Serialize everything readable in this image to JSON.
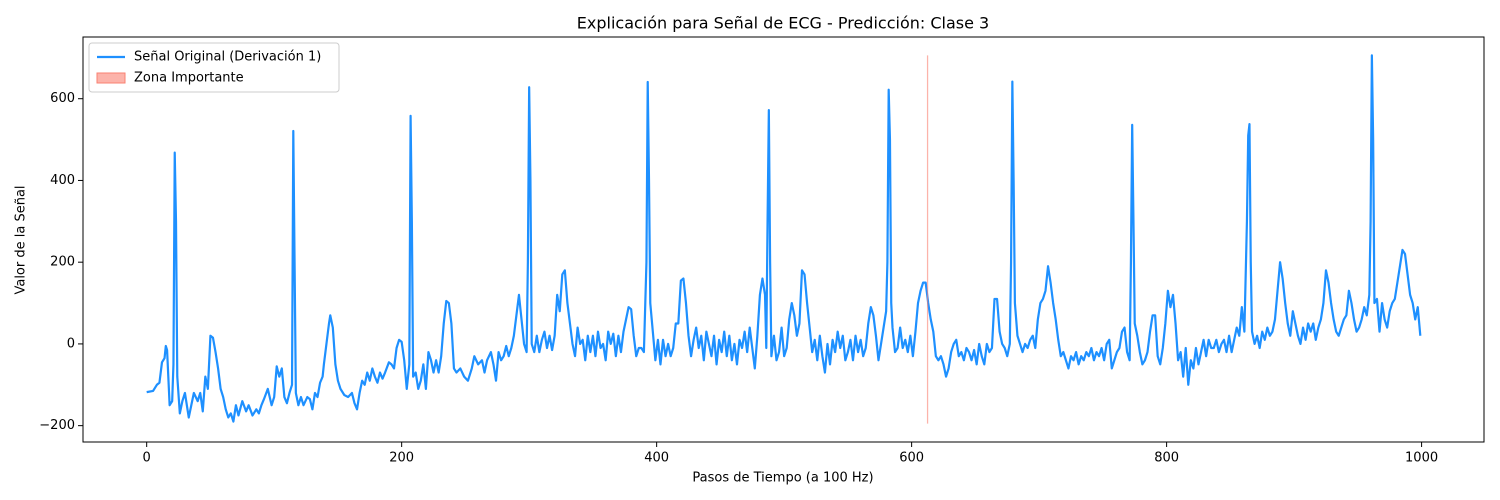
{
  "chart_data": {
    "type": "line",
    "title": "Explicación para Señal de ECG - Predicción: Clase 3",
    "xlabel": "Pasos de Tiempo (a 100 Hz)",
    "ylabel": "Valor de la Señal",
    "legend": "upper left",
    "xlim": [
      -49.95,
      1048.95
    ],
    "ylim": [
      -240,
      751
    ],
    "xticks": [
      0,
      200,
      400,
      600,
      800,
      1000
    ],
    "yticks": [
      {
        "value": -200,
        "label": "−200"
      },
      0,
      200,
      400,
      600
    ],
    "x": [
      0,
      5,
      8,
      10,
      12,
      14,
      15,
      16,
      18,
      20,
      21,
      22,
      23,
      24,
      26,
      28,
      30,
      33,
      35,
      37,
      40,
      42,
      44,
      46,
      48,
      50,
      52,
      54,
      56,
      58,
      60,
      62,
      64,
      66,
      68,
      70,
      72,
      75,
      78,
      80,
      83,
      86,
      88,
      90,
      92,
      95,
      98,
      100,
      102,
      104,
      106,
      108,
      110,
      112,
      114,
      115,
      116,
      117,
      119,
      121,
      123,
      126,
      128,
      130,
      132,
      134,
      136,
      138,
      139,
      141,
      143,
      144,
      146,
      148,
      150,
      152,
      155,
      158,
      161,
      163,
      165,
      167,
      169,
      171,
      173,
      175,
      177,
      179,
      181,
      183,
      185,
      187,
      190,
      192,
      194,
      196,
      198,
      200,
      202,
      204,
      206,
      207,
      208,
      209,
      211,
      213,
      215,
      217,
      219,
      221,
      223,
      225,
      227,
      229,
      231,
      233,
      235,
      237,
      239,
      241,
      243,
      246,
      249,
      252,
      255,
      257,
      260,
      263,
      265,
      267,
      270,
      272,
      274,
      276,
      278,
      280,
      282,
      284,
      286,
      288,
      290,
      292,
      294,
      296,
      298,
      299,
      300,
      301,
      302,
      304,
      306,
      308,
      310,
      312,
      314,
      316,
      318,
      320,
      322,
      324,
      326,
      328,
      330,
      332,
      334,
      336,
      338,
      340,
      342,
      344,
      346,
      348,
      350,
      352,
      354,
      356,
      358,
      360,
      362,
      364,
      366,
      368,
      370,
      372,
      374,
      376,
      378,
      380,
      382,
      384,
      386,
      388,
      390,
      392,
      393,
      394,
      395,
      397,
      399,
      401,
      403,
      405,
      407,
      409,
      411,
      413,
      415,
      417,
      419,
      421,
      423,
      425,
      427,
      429,
      431,
      433,
      435,
      437,
      439,
      441,
      443,
      445,
      447,
      449,
      451,
      453,
      455,
      457,
      459,
      461,
      463,
      465,
      467,
      469,
      471,
      473,
      475,
      477,
      479,
      481,
      483,
      485,
      486,
      487,
      488,
      489,
      490,
      492,
      494,
      496,
      498,
      500,
      502,
      504,
      506,
      508,
      510,
      512,
      514,
      516,
      518,
      520,
      522,
      524,
      526,
      528,
      530,
      532,
      534,
      536,
      538,
      540,
      542,
      544,
      546,
      548,
      550,
      552,
      554,
      556,
      558,
      560,
      562,
      564,
      566,
      568,
      570,
      572,
      574,
      576,
      578,
      580,
      581,
      582,
      583,
      584,
      585,
      587,
      589,
      591,
      593,
      595,
      597,
      599,
      601,
      603,
      605,
      607,
      609,
      611,
      613,
      615,
      617,
      619,
      621,
      623,
      625,
      627,
      629,
      631,
      633,
      635,
      637,
      639,
      641,
      643,
      645,
      647,
      649,
      651,
      653,
      655,
      657,
      659,
      661,
      663,
      665,
      667,
      669,
      671,
      673,
      675,
      677,
      678,
      679,
      680,
      681,
      683,
      685,
      687,
      689,
      691,
      693,
      695,
      697,
      699,
      701,
      703,
      705,
      707,
      709,
      711,
      713,
      715,
      717,
      719,
      721,
      723,
      725,
      727,
      729,
      731,
      733,
      735,
      737,
      739,
      741,
      743,
      745,
      747,
      749,
      751,
      753,
      755,
      757,
      759,
      761,
      763,
      765,
      767,
      769,
      771,
      772,
      773,
      774,
      775,
      777,
      779,
      781,
      783,
      785,
      787,
      789,
      791,
      793,
      795,
      797,
      799,
      801,
      803,
      805,
      807,
      809,
      811,
      813,
      815,
      817,
      819,
      821,
      823,
      825,
      827,
      829,
      831,
      833,
      835,
      837,
      839,
      841,
      843,
      845,
      847,
      849,
      851,
      853,
      855,
      857,
      859,
      861,
      863,
      864,
      865,
      866,
      867,
      869,
      871,
      873,
      875,
      877,
      879,
      881,
      883,
      885,
      887,
      889,
      891,
      893,
      895,
      897,
      899,
      901,
      903,
      905,
      907,
      909,
      911,
      913,
      915,
      917,
      919,
      921,
      923,
      925,
      927,
      929,
      931,
      933,
      935,
      937,
      939,
      941,
      943,
      945,
      947,
      949,
      951,
      953,
      955,
      957,
      959,
      960,
      961,
      962,
      963,
      965,
      967,
      969,
      971,
      973,
      975,
      977,
      979,
      981,
      983,
      985,
      987,
      989,
      991,
      993,
      995,
      997,
      999
    ],
    "series": [
      {
        "name": "Señal Original (Derivación 1)",
        "color": "#1e90ff",
        "values": [
          -118,
          -115,
          -100,
          -95,
          -45,
          -35,
          -5,
          -15,
          -150,
          -140,
          -50,
          468,
          300,
          -80,
          -170,
          -140,
          -120,
          -180,
          -150,
          -120,
          -140,
          -120,
          -165,
          -80,
          -110,
          20,
          15,
          -20,
          -60,
          -110,
          -130,
          -160,
          -180,
          -170,
          -190,
          -150,
          -175,
          -140,
          -165,
          -150,
          -175,
          -160,
          -170,
          -150,
          -135,
          -110,
          -150,
          -130,
          -55,
          -80,
          -60,
          -130,
          -145,
          -120,
          -100,
          521,
          200,
          -120,
          -150,
          -130,
          -150,
          -130,
          -135,
          -160,
          -120,
          -130,
          -95,
          -80,
          -50,
          0,
          50,
          70,
          40,
          -50,
          -90,
          -110,
          -125,
          -130,
          -120,
          -145,
          -160,
          -120,
          -90,
          -100,
          -70,
          -90,
          -60,
          -80,
          -95,
          -70,
          -85,
          -70,
          -45,
          -50,
          -60,
          -10,
          10,
          5,
          -40,
          -110,
          -50,
          558,
          300,
          -80,
          -70,
          -110,
          -90,
          -50,
          -110,
          -20,
          -40,
          -70,
          -40,
          -70,
          -30,
          50,
          105,
          100,
          50,
          -60,
          -70,
          -60,
          -80,
          -90,
          -60,
          -30,
          -50,
          -40,
          -70,
          -40,
          -20,
          -50,
          -90,
          -20,
          -40,
          -30,
          -5,
          -30,
          -10,
          20,
          70,
          120,
          60,
          0,
          -20,
          200,
          628,
          400,
          0,
          -20,
          20,
          -20,
          10,
          30,
          -10,
          20,
          -15,
          20,
          120,
          80,
          170,
          180,
          100,
          50,
          0,
          -30,
          40,
          0,
          10,
          -40,
          20,
          -20,
          20,
          -30,
          30,
          -10,
          0,
          -40,
          30,
          0,
          25,
          -30,
          20,
          -20,
          30,
          60,
          90,
          85,
          20,
          -30,
          -10,
          -10,
          -20,
          200,
          641,
          400,
          100,
          30,
          -40,
          10,
          -50,
          10,
          -30,
          0,
          -30,
          -10,
          50,
          50,
          155,
          160,
          100,
          20,
          -30,
          10,
          40,
          -10,
          20,
          -40,
          30,
          0,
          -30,
          20,
          -50,
          10,
          -20,
          30,
          -30,
          20,
          -40,
          0,
          -50,
          10,
          -10,
          30,
          -20,
          40,
          -10,
          -60,
          20,
          120,
          160,
          120,
          -10,
          300,
          572,
          200,
          -30,
          20,
          -40,
          -20,
          40,
          -30,
          -10,
          60,
          100,
          70,
          20,
          50,
          180,
          170,
          100,
          40,
          -20,
          10,
          -40,
          20,
          -30,
          -70,
          0,
          -50,
          10,
          -20,
          30,
          -10,
          20,
          -40,
          -20,
          10,
          -40,
          20,
          -20,
          10,
          -30,
          -10,
          50,
          90,
          70,
          20,
          -40,
          0,
          40,
          80,
          200,
          622,
          500,
          100,
          40,
          -20,
          -10,
          40,
          -10,
          10,
          -20,
          20,
          -30,
          30,
          100,
          130,
          150,
          150,
          100,
          60,
          30,
          -30,
          -40,
          -30,
          -50,
          -80,
          -60,
          -20,
          0,
          10,
          -30,
          -20,
          -40,
          -10,
          -20,
          -40,
          -15,
          -50,
          0,
          -30,
          -50,
          0,
          -20,
          -10,
          110,
          110,
          30,
          0,
          -10,
          -30,
          0,
          200,
          642,
          400,
          100,
          20,
          0,
          -20,
          0,
          -10,
          10,
          20,
          -10,
          60,
          100,
          110,
          130,
          190,
          150,
          100,
          60,
          10,
          -30,
          -20,
          -40,
          -60,
          -30,
          -40,
          -20,
          -50,
          -30,
          -40,
          -20,
          -30,
          -10,
          -40,
          -20,
          -30,
          -10,
          -40,
          0,
          10,
          -60,
          -40,
          -20,
          -10,
          30,
          40,
          -20,
          -40,
          200,
          536,
          300,
          50,
          20,
          -20,
          -50,
          -40,
          -20,
          30,
          70,
          70,
          -30,
          -50,
          -10,
          50,
          130,
          90,
          120,
          50,
          -40,
          -20,
          -80,
          -10,
          -100,
          -40,
          -60,
          -10,
          -50,
          -20,
          10,
          -30,
          10,
          -10,
          -10,
          10,
          -20,
          0,
          10,
          -20,
          20,
          -20,
          10,
          40,
          20,
          90,
          30,
          300,
          510,
          538,
          200,
          30,
          0,
          20,
          -10,
          30,
          10,
          40,
          20,
          30,
          60,
          130,
          200,
          160,
          100,
          50,
          20,
          80,
          50,
          20,
          0,
          40,
          10,
          50,
          30,
          50,
          10,
          40,
          60,
          100,
          180,
          150,
          100,
          60,
          30,
          20,
          40,
          60,
          70,
          130,
          100,
          60,
          30,
          40,
          60,
          90,
          70,
          120,
          300,
          706,
          500,
          100,
          110,
          30,
          100,
          60,
          40,
          80,
          100,
          110,
          150,
          190,
          230,
          220,
          170,
          120,
          100,
          60,
          90,
          20
        ]
      }
    ],
    "highlight": {
      "name": "Zona Importante",
      "color": "#fa8072",
      "x": [
        612,
        613
      ],
      "y": [
        -195,
        706
      ]
    }
  }
}
